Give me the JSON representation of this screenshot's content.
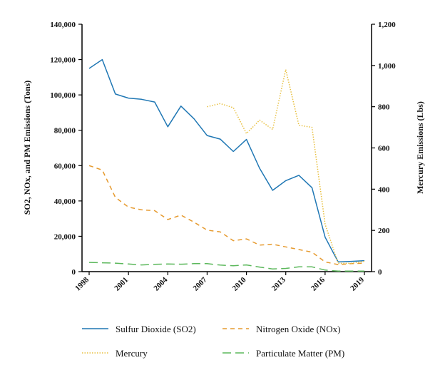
{
  "chart_data": {
    "type": "line",
    "title": "",
    "x": [
      1998,
      1999,
      2000,
      2001,
      2002,
      2003,
      2004,
      2005,
      2006,
      2007,
      2008,
      2009,
      2010,
      2011,
      2012,
      2013,
      2014,
      2015,
      2016,
      2017,
      2018,
      2019
    ],
    "xlabel": "",
    "x_ticks": [
      1998,
      2001,
      2004,
      2007,
      2010,
      2013,
      2016,
      2019
    ],
    "x_tick_labels": [
      "1998",
      "2001",
      "2004",
      "2007",
      "2010",
      "2013",
      "2016",
      "2019"
    ],
    "xlim": [
      1998,
      2019
    ],
    "ylabel_left": "SO2, NOx, and PM Emissions (Tons)",
    "ylim_left": [
      0,
      140000
    ],
    "y_ticks_left": [
      0,
      20000,
      40000,
      60000,
      80000,
      100000,
      120000,
      140000
    ],
    "y_tick_labels_left": [
      "0",
      "20,000",
      "40,000",
      "60,000",
      "80,000",
      "100,000",
      "120,000",
      "140,000"
    ],
    "ylabel_right": "Mercury Emissions (Lbs)",
    "ylim_right": [
      0,
      1200
    ],
    "y_ticks_right": [
      0,
      200,
      400,
      600,
      800,
      1000,
      1200
    ],
    "y_tick_labels_right": [
      "0",
      "200",
      "400",
      "600",
      "800",
      "1,000",
      "1,200"
    ],
    "series": [
      {
        "name": "Sulfur Dioxide (SO2)",
        "axis": "left",
        "style": "solid",
        "color": "#1f77b4",
        "values": [
          115000,
          120000,
          100500,
          98200,
          97500,
          96000,
          82000,
          93700,
          86500,
          77000,
          75000,
          68000,
          74800,
          58500,
          46000,
          51500,
          54500,
          47500,
          19500,
          5500,
          5800,
          6200
        ]
      },
      {
        "name": "Nitrogen Oxide (NOx)",
        "axis": "left",
        "style": "dashed",
        "color": "#e69a2e",
        "values": [
          60000,
          57500,
          42000,
          36500,
          35000,
          34500,
          29500,
          32000,
          28000,
          23500,
          22500,
          17500,
          18500,
          15000,
          15500,
          14000,
          12500,
          11000,
          5500,
          4000,
          4500,
          4800
        ]
      },
      {
        "name": "Mercury",
        "axis": "right",
        "style": "dotted",
        "color": "#e8c040",
        "values": [
          null,
          null,
          null,
          null,
          null,
          null,
          null,
          null,
          null,
          800,
          815,
          795,
          670,
          735,
          690,
          980,
          710,
          700,
          230,
          40,
          40,
          50
        ]
      },
      {
        "name": "Particulate Matter (PM)",
        "axis": "left",
        "style": "long-dash",
        "color": "#5cb85c",
        "values": [
          5200,
          5000,
          4800,
          4300,
          3800,
          4100,
          4300,
          4200,
          4500,
          4500,
          3700,
          3300,
          3800,
          2600,
          1500,
          1800,
          2700,
          2700,
          900,
          300,
          300,
          300
        ]
      }
    ],
    "legend_position": "bottom",
    "grid": false
  }
}
